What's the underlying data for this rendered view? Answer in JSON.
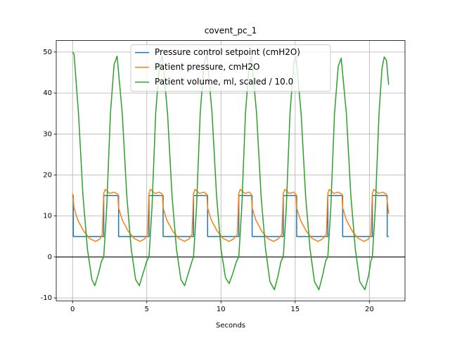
{
  "chart_data": {
    "type": "line",
    "title": "covent_pc_1",
    "xlabel": "Seconds",
    "xlim": [
      -1.1,
      22.4
    ],
    "xticks": [
      0,
      5,
      10,
      15,
      20
    ],
    "ylim": [
      -10.7,
      52.8
    ],
    "yticks": [
      -10,
      0,
      10,
      20,
      30,
      40,
      50
    ],
    "grid": true,
    "hlines": [
      0
    ],
    "legend": "upper center",
    "series": [
      {
        "name": "Pressure control setpoint (cmH2O)",
        "color": "#1f77b4",
        "x": [
          0,
          0.05,
          0.05,
          2.1,
          2.1,
          3.1,
          3.1,
          5.15,
          5.15,
          6.1,
          6.1,
          8.15,
          8.15,
          9.1,
          9.1,
          11.2,
          11.2,
          12.1,
          12.1,
          14.2,
          14.2,
          15.1,
          15.1,
          17.2,
          17.2,
          18.2,
          18.2,
          20.2,
          20.2,
          21.2,
          21.2,
          21.3
        ],
        "values": [
          15,
          15,
          5,
          5,
          15,
          15,
          5,
          5,
          15,
          15,
          5,
          5,
          15,
          15,
          5,
          5,
          15,
          15,
          5,
          5,
          15,
          15,
          5,
          5,
          15,
          15,
          5,
          5,
          15,
          15,
          5,
          5
        ]
      },
      {
        "name": "Patient pressure, cmH2O",
        "color": "#ff7f0e",
        "x": [
          0,
          0.1,
          0.35,
          0.75,
          1.15,
          1.55,
          1.85,
          2.0,
          2.1,
          2.2,
          2.5,
          2.8,
          3.05,
          3.1,
          3.35,
          3.75,
          4.15,
          4.55,
          4.85,
          5.05,
          5.15,
          5.25,
          5.55,
          5.85,
          6.05,
          6.1,
          6.35,
          6.75,
          7.15,
          7.55,
          7.85,
          8.05,
          8.15,
          8.25,
          8.55,
          8.85,
          9.05,
          9.1,
          9.35,
          9.75,
          10.15,
          10.55,
          10.85,
          11.1,
          11.2,
          11.3,
          11.6,
          11.9,
          12.05,
          12.1,
          12.35,
          12.75,
          13.15,
          13.55,
          13.85,
          14.1,
          14.2,
          14.3,
          14.6,
          14.9,
          15.05,
          15.1,
          15.35,
          15.75,
          16.15,
          16.55,
          16.85,
          17.1,
          17.2,
          17.3,
          17.6,
          17.9,
          18.15,
          18.2,
          18.45,
          18.85,
          19.25,
          19.65,
          19.95,
          20.1,
          20.2,
          20.3,
          20.6,
          20.9,
          21.15,
          21.3
        ],
        "values": [
          15.5,
          12,
          9,
          6.3,
          4.5,
          3.8,
          4.4,
          5.5,
          15.5,
          16.5,
          15.5,
          15.8,
          15.3,
          12,
          9,
          6.3,
          4.5,
          3.8,
          4.4,
          5.5,
          15.5,
          16.5,
          15.5,
          15.8,
          15.3,
          12,
          9,
          6.3,
          4.5,
          3.8,
          4.4,
          5.5,
          15.5,
          16.5,
          15.5,
          15.8,
          15.3,
          12,
          9,
          6.3,
          4.5,
          3.8,
          4.4,
          5.5,
          15.5,
          16.5,
          15.5,
          15.8,
          15.3,
          12,
          9,
          6.3,
          4.5,
          3.8,
          4.4,
          5.5,
          15.5,
          16.5,
          15.5,
          15.8,
          15.3,
          12,
          9,
          6.3,
          4.5,
          3.8,
          4.4,
          5.5,
          15.5,
          16.5,
          15.5,
          15.8,
          15.3,
          12,
          9,
          6.3,
          4.5,
          3.8,
          4.4,
          5.5,
          15.5,
          16.5,
          15.5,
          15.8,
          15.3,
          10.5
        ]
      },
      {
        "name": "Patient volume, ml, scaled / 10.0",
        "color": "#2ca02c",
        "x": [
          0,
          0.1,
          0.4,
          0.7,
          1.0,
          1.3,
          1.5,
          1.75,
          1.95,
          2.1,
          2.3,
          2.55,
          2.8,
          3.0,
          3.35,
          3.65,
          3.95,
          4.25,
          4.5,
          4.75,
          5.0,
          5.15,
          5.35,
          5.6,
          5.85,
          6.05,
          6.4,
          6.7,
          7.0,
          7.3,
          7.55,
          7.8,
          8.05,
          8.15,
          8.35,
          8.6,
          8.85,
          9.05,
          9.4,
          9.7,
          10.0,
          10.3,
          10.55,
          10.8,
          11.05,
          11.2,
          11.4,
          11.65,
          11.9,
          12.05,
          12.4,
          12.7,
          13.0,
          13.3,
          13.6,
          13.85,
          14.05,
          14.2,
          14.4,
          14.65,
          14.9,
          15.05,
          15.4,
          15.7,
          16.0,
          16.3,
          16.6,
          16.85,
          17.05,
          17.2,
          17.4,
          17.65,
          17.9,
          18.1,
          18.45,
          18.75,
          19.05,
          19.35,
          19.7,
          19.95,
          20.1,
          20.2,
          20.4,
          20.65,
          20.85,
          21.0,
          21.15,
          21.3
        ],
        "values": [
          50,
          49.5,
          35,
          15,
          2,
          -5.5,
          -7,
          -4,
          -1,
          0,
          12,
          35,
          47,
          49,
          35,
          15,
          2,
          -5.5,
          -7,
          -4,
          -1,
          0,
          12,
          35,
          47,
          49,
          35,
          15,
          2,
          -5.5,
          -7,
          -4,
          -1,
          0,
          12,
          35,
          47,
          49.5,
          35,
          15,
          2,
          -5,
          -6.5,
          -4,
          -1,
          0,
          12,
          35,
          47,
          49,
          35,
          15,
          2,
          -6,
          -8,
          -4.5,
          -1,
          0,
          12,
          35,
          47,
          49,
          35,
          15,
          2,
          -6,
          -8,
          -4.5,
          -1,
          0,
          12,
          35,
          46.5,
          48.5,
          35,
          15,
          2,
          -6,
          -8,
          -4.5,
          -1,
          0,
          12,
          35,
          46,
          48.8,
          48,
          42
        ]
      }
    ]
  }
}
